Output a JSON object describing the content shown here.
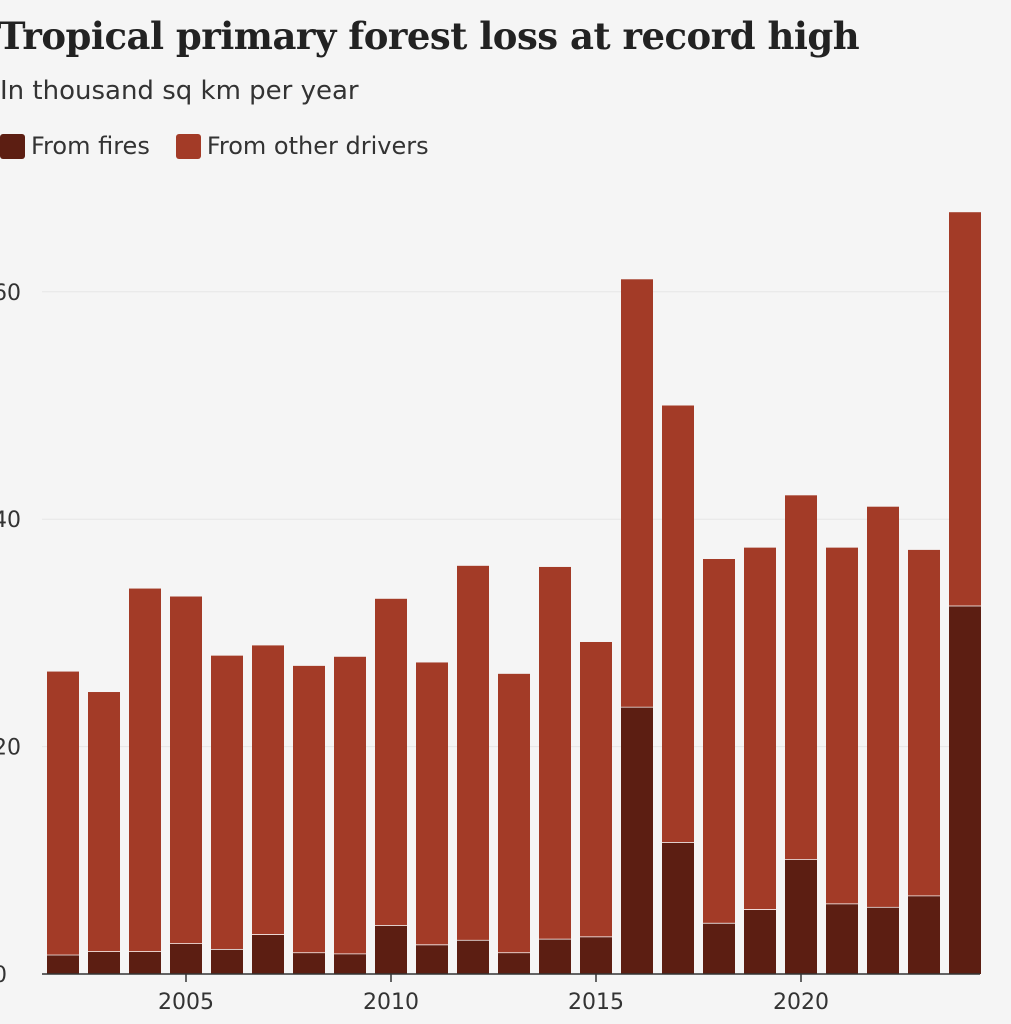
{
  "chart_data": {
    "type": "bar",
    "stacked": true,
    "title": "Tropical primary forest loss at record high",
    "subtitle": "In thousand sq km per year",
    "xlabel": "",
    "ylabel": "",
    "ylim": [
      0,
      67
    ],
    "yticks": [
      0,
      20,
      40,
      60
    ],
    "xticks": [
      2005,
      2010,
      2015,
      2020
    ],
    "grid": true,
    "legend_position": "top-left",
    "categories": [
      2002,
      2003,
      2004,
      2005,
      2006,
      2007,
      2008,
      2009,
      2010,
      2011,
      2012,
      2013,
      2014,
      2015,
      2016,
      2017,
      2018,
      2019,
      2020,
      2021,
      2022,
      2023,
      2024
    ],
    "series": [
      {
        "name": "From fires",
        "color": "#5c1e12",
        "values": [
          1.7,
          2.0,
          2.0,
          2.7,
          2.2,
          3.5,
          1.9,
          1.8,
          4.3,
          2.6,
          3.0,
          1.9,
          3.1,
          3.3,
          23.5,
          11.6,
          4.5,
          5.7,
          10.1,
          6.2,
          5.9,
          6.9,
          32.4
        ]
      },
      {
        "name": "From other drivers",
        "color": "#a33b27",
        "values": [
          24.9,
          22.8,
          31.9,
          30.5,
          25.8,
          25.4,
          25.2,
          26.1,
          28.7,
          24.8,
          32.9,
          24.5,
          32.7,
          25.9,
          37.6,
          38.4,
          32.0,
          31.8,
          32.0,
          31.3,
          35.2,
          30.4,
          34.6
        ]
      }
    ]
  }
}
